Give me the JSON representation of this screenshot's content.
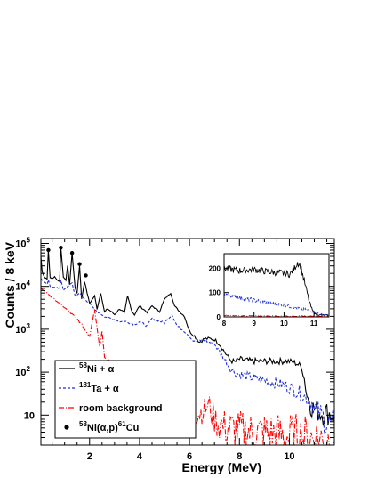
{
  "chart_data": {
    "type": "line",
    "title": "",
    "xlabel": "Energy (MeV)",
    "ylabel": "Counts / 8 keV",
    "xlim": [
      0.05,
      11.8
    ],
    "ylim": [
      2,
      130000
    ],
    "yscale": "log",
    "grid": false,
    "legend_position": "bottom-left",
    "x_ticks": [
      {
        "v": 2,
        "label": "2"
      },
      {
        "v": 4,
        "label": "4"
      },
      {
        "v": 6,
        "label": "6"
      },
      {
        "v": 8,
        "label": "8"
      },
      {
        "v": 10,
        "label": "10"
      }
    ],
    "y_ticks": [
      {
        "v": 10,
        "label": "10",
        "sup": ""
      },
      {
        "v": 100,
        "label": "10",
        "sup": "2"
      },
      {
        "v": 1000,
        "label": "10",
        "sup": "3"
      },
      {
        "v": 10000,
        "label": "10",
        "sup": "4"
      },
      {
        "v": 100000,
        "label": "10",
        "sup": "5"
      }
    ],
    "series": [
      {
        "name": "58Ni + α",
        "legend_parts": [
          {
            "t": "58",
            "sup": true
          },
          {
            "t": "Ni + α",
            "sup": false
          }
        ],
        "color": "#000000",
        "style": "solid",
        "x": [
          0.05,
          0.1,
          0.2,
          0.3,
          0.35,
          0.42,
          0.5,
          0.6,
          0.7,
          0.8,
          0.85,
          0.95,
          1.05,
          1.12,
          1.2,
          1.3,
          1.42,
          1.5,
          1.6,
          1.68,
          1.8,
          1.9,
          2.0,
          2.2,
          2.3,
          2.45,
          2.6,
          2.72,
          2.9,
          3.0,
          3.2,
          3.4,
          3.52,
          3.7,
          3.8,
          4.0,
          4.3,
          4.5,
          4.8,
          5.0,
          5.25,
          5.4,
          5.6,
          5.8,
          6.0,
          6.2,
          6.4,
          6.6,
          6.8,
          7.0,
          7.2,
          7.4,
          7.6,
          7.8,
          8.0,
          8.5,
          9.0,
          9.5,
          10.0,
          10.3,
          10.5,
          10.6,
          10.7,
          10.8,
          10.9,
          11.0,
          11.1,
          11.2,
          11.4,
          11.6,
          11.8
        ],
        "y": [
          50000,
          22000,
          16000,
          15000,
          70000,
          16000,
          15000,
          17000,
          14000,
          13000,
          80000,
          16000,
          14000,
          30000,
          11000,
          60000,
          9000,
          7000,
          30000,
          5000,
          13000,
          7000,
          4000,
          6000,
          3000,
          7000,
          2500,
          3000,
          2500,
          2200,
          3000,
          2400,
          6000,
          2600,
          2200,
          3500,
          2500,
          3500,
          2600,
          5000,
          7000,
          3500,
          2600,
          2000,
          900,
          700,
          500,
          600,
          600,
          580,
          450,
          300,
          200,
          170,
          200,
          180,
          180,
          180,
          180,
          160,
          130,
          70,
          30,
          20,
          15,
          14,
          13,
          12,
          11,
          11,
          10
        ]
      },
      {
        "name": "181Ta + α",
        "legend_parts": [
          {
            "t": "181",
            "sup": true
          },
          {
            "t": "Ta + α",
            "sup": false
          }
        ],
        "color": "#1f2fd8",
        "style": "dashed",
        "x": [
          0.05,
          0.3,
          0.35,
          0.42,
          0.6,
          0.8,
          0.85,
          0.95,
          1.12,
          1.3,
          1.42,
          1.6,
          1.8,
          2.0,
          2.2,
          2.4,
          2.6,
          2.8,
          3.0,
          3.2,
          3.5,
          3.8,
          4.0,
          4.3,
          4.5,
          5.0,
          5.3,
          5.5,
          5.8,
          6.0,
          6.2,
          6.4,
          6.6,
          6.8,
          7.0,
          7.2,
          7.4,
          7.6,
          7.8,
          8.0,
          8.5,
          9.0,
          9.5,
          10.0,
          10.3,
          10.5,
          10.7,
          10.9,
          11.1,
          11.3,
          11.5,
          11.8
        ],
        "y": [
          15000,
          11000,
          14000,
          10000,
          9500,
          9000,
          14000,
          8000,
          10000,
          12000,
          6000,
          7000,
          5000,
          4000,
          2800,
          2400,
          2000,
          1800,
          1700,
          1500,
          1500,
          1300,
          1500,
          1200,
          1800,
          1400,
          2200,
          1200,
          900,
          700,
          500,
          550,
          560,
          500,
          450,
          300,
          200,
          130,
          100,
          90,
          75,
          65,
          55,
          45,
          35,
          30,
          25,
          20,
          12,
          9,
          7,
          5
        ]
      },
      {
        "name": "room background",
        "legend_parts": [
          {
            "t": "room background",
            "sup": false
          }
        ],
        "color": "#ff0000",
        "style": "dashdot",
        "x": [
          0.05,
          0.3,
          0.5,
          0.8,
          1.0,
          1.2,
          1.4,
          1.6,
          1.8,
          2.0,
          2.2,
          2.4,
          2.5,
          2.6,
          2.8,
          3.0,
          3.2,
          3.4,
          3.6,
          3.8,
          4.0,
          4.5,
          5.0,
          5.5,
          6.0,
          6.5,
          6.8,
          6.9,
          7.0,
          7.2,
          7.5,
          8.0,
          8.5,
          9.0,
          9.5,
          10.0,
          10.5,
          11.0,
          11.5,
          11.8
        ],
        "y": [
          9000,
          7000,
          5500,
          4000,
          3200,
          2500,
          2000,
          1500,
          1000,
          700,
          3000,
          400,
          900,
          250,
          180,
          120,
          80,
          60,
          45,
          35,
          25,
          15,
          11,
          10,
          10,
          12,
          18,
          10,
          8,
          6,
          5,
          4.5,
          4,
          3.8,
          3.5,
          3.2,
          3,
          2.8,
          2.5,
          2.4
        ]
      },
      {
        "name": "58Ni(α,p)61Cu",
        "legend_parts": [
          {
            "t": "58",
            "sup": true
          },
          {
            "t": "Ni(α,p)",
            "sup": false
          },
          {
            "t": "61",
            "sup": true
          },
          {
            "t": "Cu",
            "sup": false
          }
        ],
        "color": "#000000",
        "style": "markers",
        "x": [
          0.35,
          0.85,
          1.3,
          1.6,
          1.85
        ],
        "y": [
          70000,
          80000,
          60000,
          33000,
          18000
        ]
      }
    ],
    "inset": {
      "type": "line",
      "xlim": [
        8,
        11.5
      ],
      "ylim": [
        0,
        260
      ],
      "yscale": "linear",
      "x_ticks": [
        8,
        9,
        10,
        11
      ],
      "y_ticks": [
        0,
        100,
        200
      ],
      "series": [
        {
          "name": "58Ni + α",
          "color": "#000000",
          "style": "solid",
          "x": [
            8.0,
            8.5,
            9.0,
            9.5,
            10.0,
            10.2,
            10.35,
            10.45,
            10.55,
            10.65,
            10.75,
            10.85,
            10.95,
            11.05,
            11.2,
            11.5
          ],
          "y": [
            200,
            190,
            195,
            185,
            180,
            175,
            200,
            225,
            210,
            160,
            110,
            60,
            25,
            12,
            8,
            6
          ]
        },
        {
          "name": "181Ta + α",
          "color": "#1f2fd8",
          "style": "dashed",
          "x": [
            8.0,
            8.5,
            9.0,
            9.5,
            10.0,
            10.5,
            10.8,
            11.0,
            11.2,
            11.5
          ],
          "y": [
            95,
            80,
            68,
            58,
            48,
            35,
            28,
            20,
            12,
            6
          ]
        },
        {
          "name": "room background",
          "color": "#ff0000",
          "style": "dashdot",
          "x": [
            8.0,
            9.0,
            10.0,
            11.0,
            11.5
          ],
          "y": [
            5,
            4,
            3.5,
            3,
            2.5
          ]
        }
      ]
    }
  }
}
